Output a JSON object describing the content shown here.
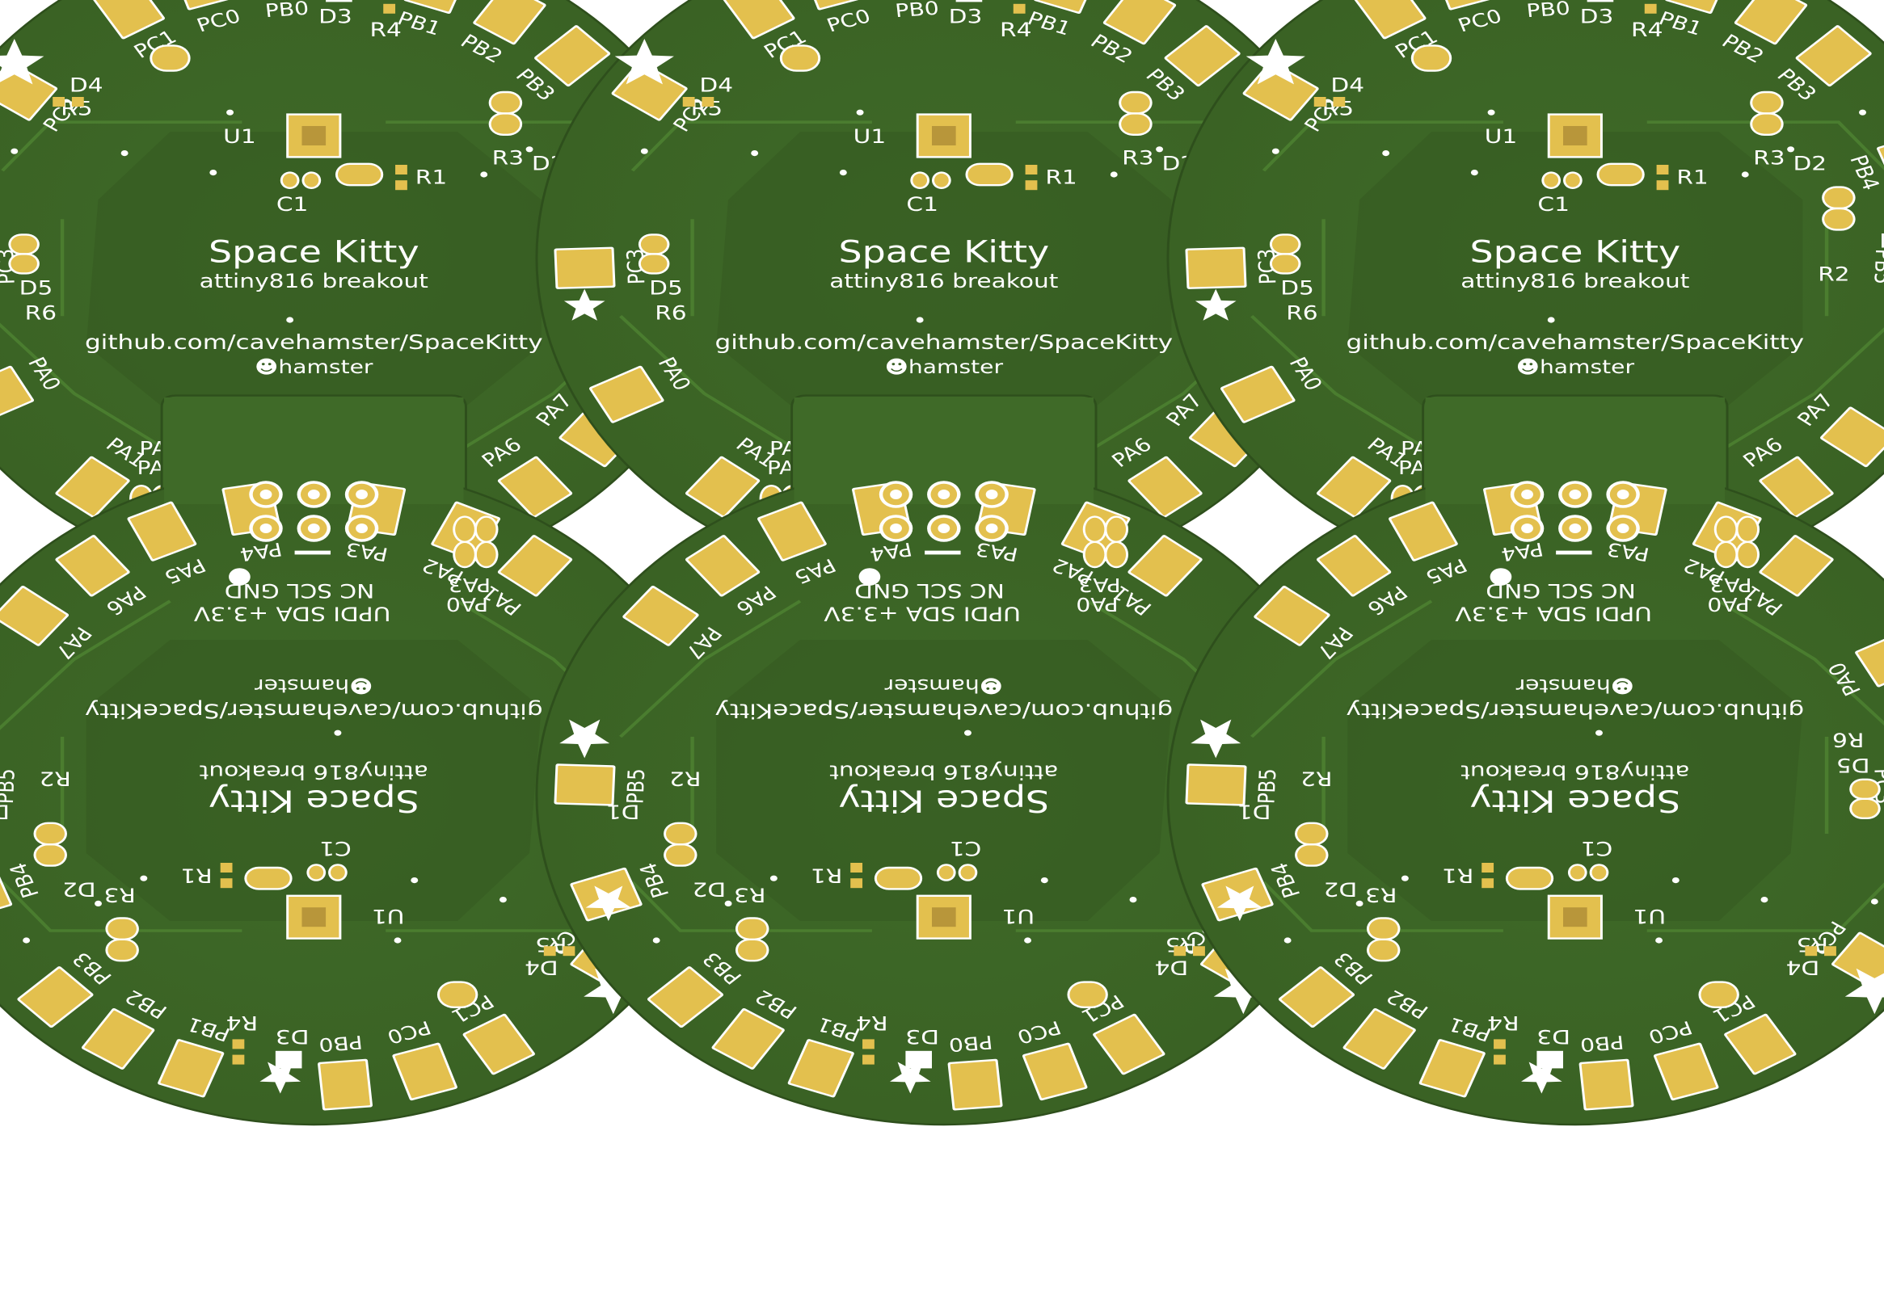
{
  "colors": {
    "board": "#3f6a28",
    "board_dark": "#345a20",
    "board_outline": "#2e4f1c",
    "trace": "#4d7f31",
    "pad": "#e3c04e",
    "pad_dark": "#b8963a",
    "silk": "#ffffff",
    "background": "#ffffff"
  },
  "board": {
    "title": "Space Kitty",
    "subtitle": "attiny816 breakout",
    "url": "github.com/cavehamster/SpaceKitty",
    "author": "☻hamster",
    "header_row1": "UPDI SDA +3.3V",
    "header_row2": "NC SCL GND",
    "pad_labels": [
      "PC1",
      "PC0",
      "PB0",
      "PB1",
      "PB2",
      "PB3",
      "PB4",
      "PB5",
      "PA7",
      "PA6",
      "PA5",
      "PA4",
      "PA3",
      "PA2",
      "PA1",
      "PA0",
      "PC3",
      "PC2"
    ],
    "component_labels": {
      "u1": "U1",
      "c1": "C1",
      "r1": "R1",
      "r2": "R2",
      "r3": "R3",
      "r4": "R4",
      "r5": "R5",
      "r6": "R6",
      "d1": "D1",
      "d2": "D2",
      "d3": "D3",
      "d4": "D4",
      "d5": "D5",
      "pa0": "PA0",
      "pa3": "PA3"
    },
    "star_icon": "star-icon"
  },
  "panel": {
    "columns": 3,
    "rows": 2,
    "bottom_row_rotated": true
  }
}
